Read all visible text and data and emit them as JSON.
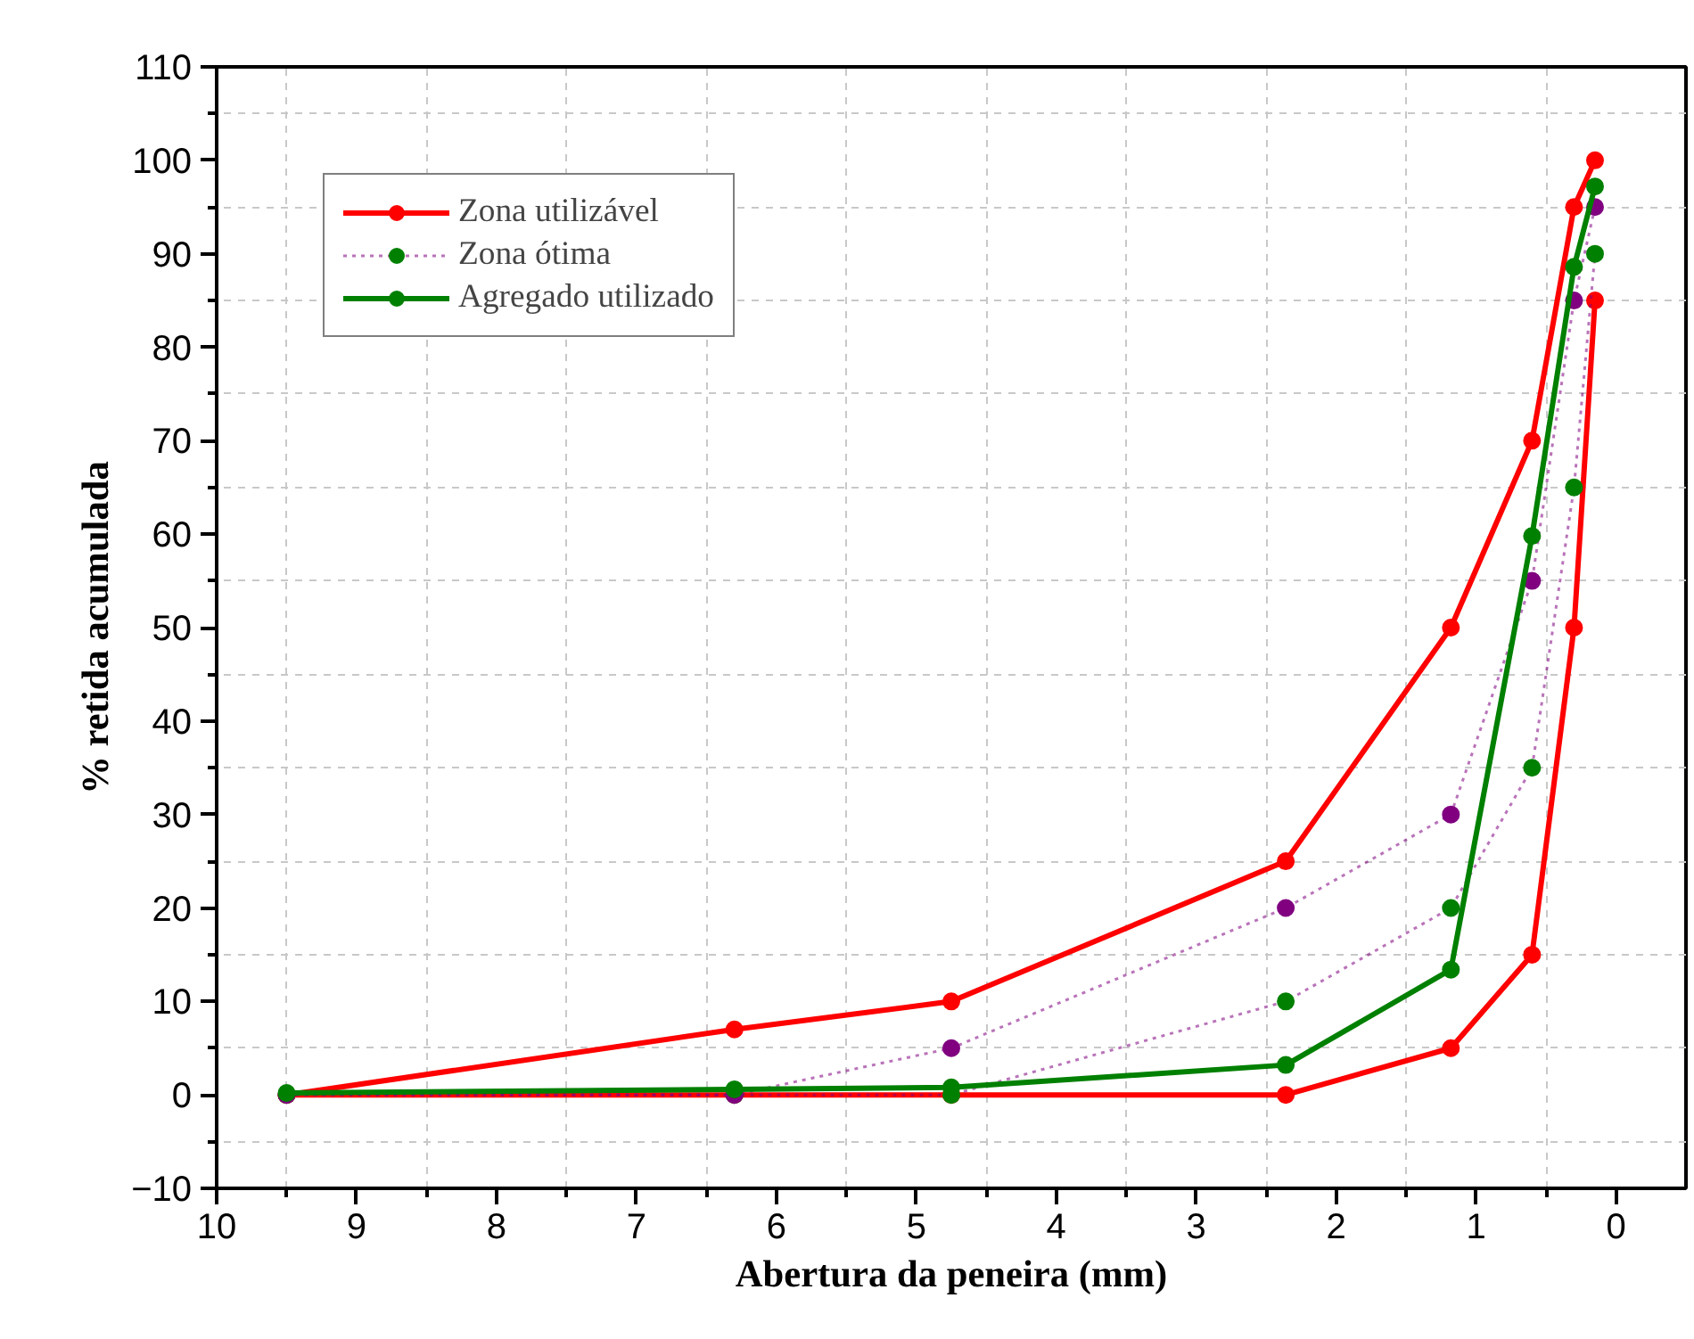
{
  "chart_data": {
    "type": "line",
    "xlabel": "Abertura da peneira (mm)",
    "ylabel": "% retida acumulada",
    "xlim": [
      10,
      -0.5
    ],
    "xticks": [
      10,
      9,
      8,
      7,
      6,
      5,
      4,
      3,
      2,
      1,
      0
    ],
    "ylim": [
      -10,
      110
    ],
    "yticks": [
      -10,
      0,
      10,
      20,
      30,
      40,
      50,
      60,
      70,
      80,
      90,
      100,
      110
    ],
    "grid": true,
    "legend": "top left",
    "marker": "circle",
    "series": [
      {
        "name": "Zona utilizável",
        "color": "#ff0000",
        "line_style": "solid",
        "x": [
          9.5,
          6.3,
          4.75,
          2.36,
          1.18,
          0.6,
          0.3,
          0.15
        ],
        "values": [
          0,
          7,
          10,
          25,
          50,
          70,
          95,
          100
        ]
      },
      {
        "color": "#ff0000",
        "line_style": "solid",
        "x": [
          9.5,
          6.3,
          4.75,
          2.36,
          1.18,
          0.6,
          0.3,
          0.15
        ],
        "values": [
          0,
          0,
          0,
          0,
          5,
          15,
          50,
          85
        ]
      },
      {
        "name": "Zona ótima",
        "color": "#800080",
        "line_style": "dotted",
        "x": [
          9.5,
          6.3,
          4.75,
          2.36,
          1.18,
          0.6,
          0.3,
          0.15
        ],
        "values": [
          0,
          0,
          0,
          10,
          20,
          35,
          65,
          90
        ],
        "colors": [
          "#008000",
          "#008000",
          "#008000",
          "#008000",
          "#008000",
          "#008000",
          "#008000",
          "#008000"
        ]
      },
      {
        "color": "#800080",
        "line_style": "dotted",
        "x": [
          9.5,
          6.3,
          4.75,
          2.36,
          1.18,
          0.6,
          0.3,
          0.15
        ],
        "values": [
          0,
          0,
          5,
          20,
          30,
          55,
          85,
          95
        ]
      },
      {
        "name": "Agregado utilizado",
        "color": "#008000",
        "line_style": "solid",
        "x": [
          9.5,
          6.3,
          4.75,
          2.36,
          1.18,
          0.6,
          0.3,
          0.15
        ],
        "values": [
          0.2,
          0.6,
          0.8,
          3.2,
          13.4,
          59.8,
          88.6,
          97.2
        ]
      }
    ]
  }
}
